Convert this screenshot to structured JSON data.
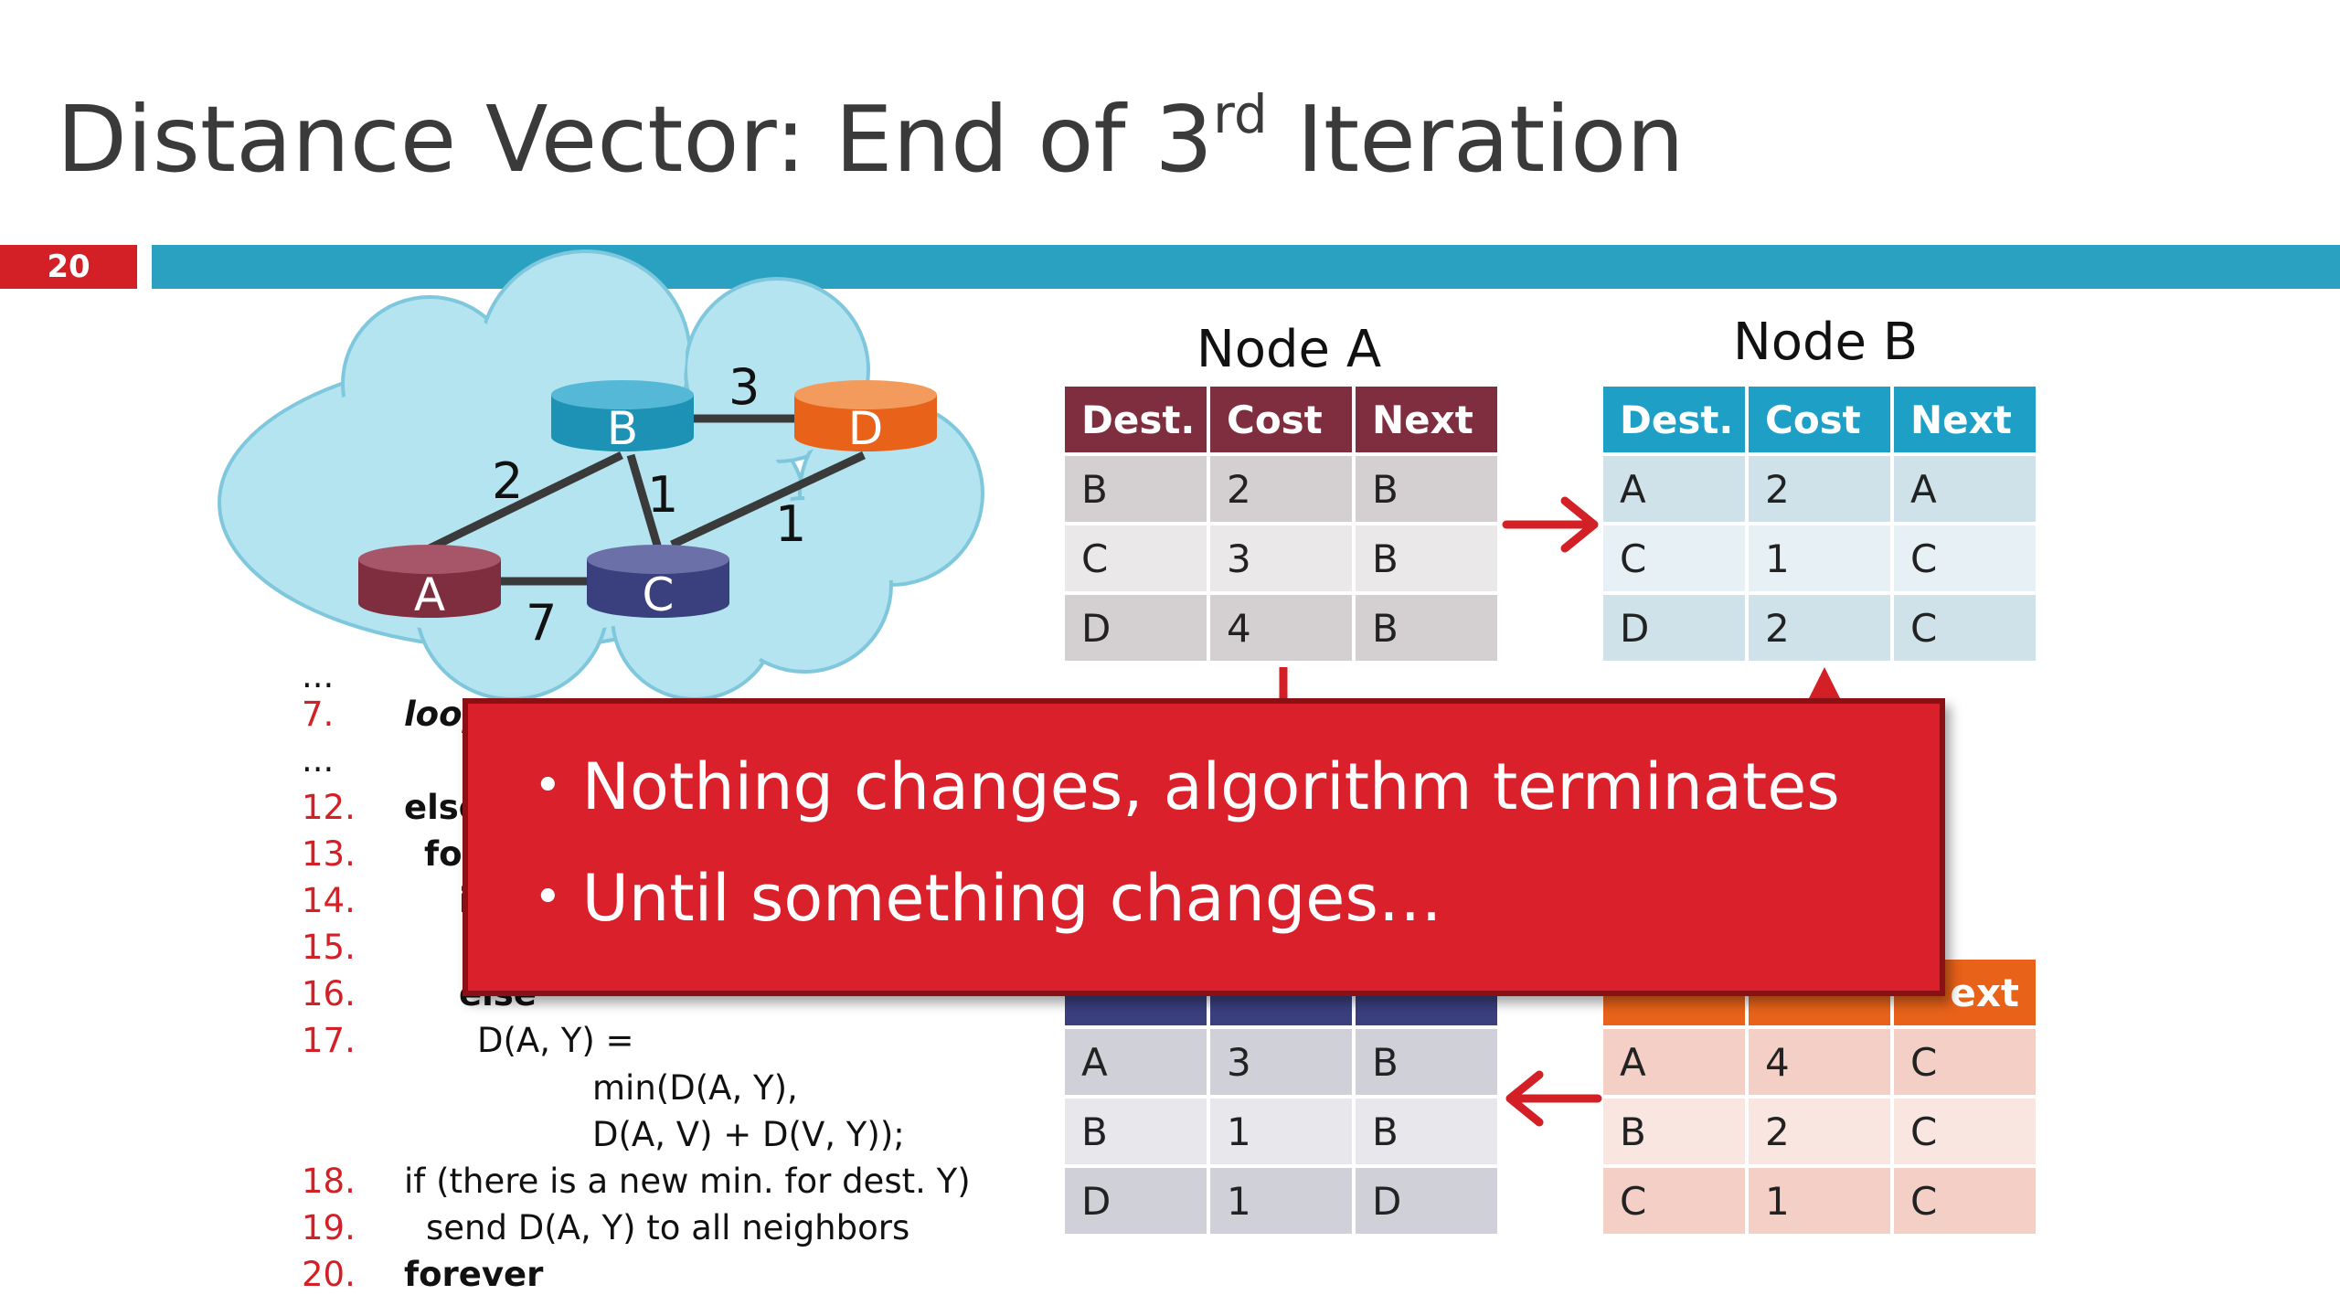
{
  "slide": {
    "title": "Distance Vector: End of 3",
    "title_superscript": "rd",
    "title_tail": " Iteration",
    "number": "20"
  },
  "colors": {
    "accent_red": "#d32027",
    "title_bar_blue": "#2aa1c0",
    "node_a": "#7e2e3e",
    "node_b": "#1e92b4",
    "node_c": "#3a3f7e",
    "node_d": "#e8621a"
  },
  "graph": {
    "nodes": [
      "A",
      "B",
      "C",
      "D"
    ],
    "edges": [
      {
        "from": "A",
        "to": "B",
        "weight": "2"
      },
      {
        "from": "A",
        "to": "C",
        "weight": "7"
      },
      {
        "from": "B",
        "to": "C",
        "weight": "1"
      },
      {
        "from": "B",
        "to": "D",
        "weight": "3"
      },
      {
        "from": "C",
        "to": "D",
        "weight": "1"
      }
    ]
  },
  "node_a": {
    "title": "Node A",
    "headers": [
      "Dest.",
      "Cost",
      "Next"
    ],
    "rows": [
      [
        "B",
        "2",
        "B"
      ],
      [
        "C",
        "3",
        "B"
      ],
      [
        "D",
        "4",
        "B"
      ]
    ]
  },
  "node_b": {
    "title": "Node B",
    "headers": [
      "Dest.",
      "Cost",
      "Next"
    ],
    "rows": [
      [
        "A",
        "2",
        "A"
      ],
      [
        "C",
        "1",
        "C"
      ],
      [
        "D",
        "2",
        "C"
      ]
    ]
  },
  "node_c": {
    "rows": [
      [
        "A",
        "3",
        "B"
      ],
      [
        "B",
        "1",
        "B"
      ],
      [
        "D",
        "1",
        "D"
      ]
    ]
  },
  "node_d": {
    "header_visible": "ext",
    "rows": [
      [
        "A",
        "4",
        "C"
      ],
      [
        "B",
        "2",
        "C"
      ],
      [
        "C",
        "1",
        "C"
      ]
    ]
  },
  "code": {
    "lines": [
      {
        "num": "...",
        "text": ""
      },
      {
        "num": "7.",
        "text": "loop"
      },
      {
        "num": "...",
        "text": ""
      },
      {
        "num": "12.",
        "text": "else"
      },
      {
        "num": "13.",
        "text": "for"
      },
      {
        "num": "14.",
        "text": "i"
      },
      {
        "num": "15.",
        "text": ""
      },
      {
        "num": "16.",
        "text": "else"
      },
      {
        "num": "17.",
        "text": "D(A, Y) ="
      },
      {
        "num": "",
        "text": "min(D(A, Y),"
      },
      {
        "num": "",
        "text": "D(A, V) + D(V, Y));"
      },
      {
        "num": "18.",
        "text": "if (there is a new min. for dest. Y)"
      },
      {
        "num": "19.",
        "text": "send D(A, Y) to all neighbors"
      },
      {
        "num": "20.",
        "text": "forever"
      }
    ]
  },
  "popup": {
    "bullets": [
      "Nothing changes, algorithm terminates",
      "Until something changes…"
    ]
  }
}
